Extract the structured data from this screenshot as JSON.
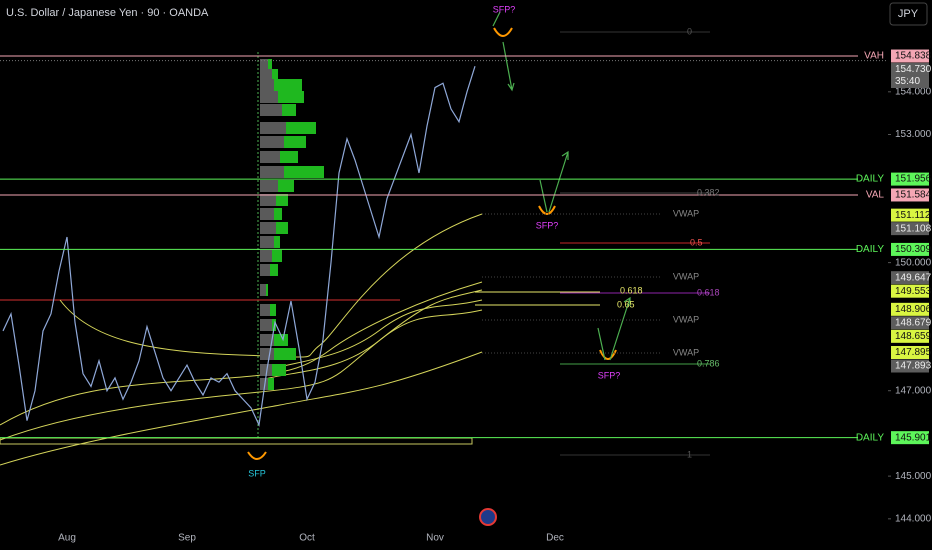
{
  "chart_data": {
    "type": "line",
    "title": "U.S. Dollar / Japanese Yen · 90 · OANDA",
    "currency": "JPY",
    "color": "#8fa8d8",
    "categories": [
      null,
      null,
      null,
      null,
      null,
      null,
      null,
      null,
      "Aug",
      null,
      null,
      null,
      null,
      null,
      null,
      null,
      null,
      null,
      null,
      null,
      null,
      null,
      null,
      "Sep",
      null,
      null,
      null,
      null,
      null,
      null,
      null,
      null,
      null,
      null,
      null,
      null,
      null,
      null,
      "Oct",
      null,
      null,
      null,
      null,
      null,
      null,
      null,
      null,
      null,
      null,
      null,
      null,
      null,
      null,
      null,
      "Nov",
      null,
      null,
      null,
      null,
      null,
      null,
      null,
      null,
      null,
      null,
      null,
      null,
      null,
      null,
      "Dec"
    ],
    "values": [
      148.4,
      148.8,
      147.6,
      146.3,
      147.0,
      148.4,
      148.8,
      149.8,
      150.6,
      148.6,
      147.4,
      147.1,
      147.7,
      147.0,
      147.3,
      146.8,
      147.2,
      147.7,
      148.5,
      147.9,
      147.3,
      147.0,
      147.3,
      147.6,
      147.2,
      146.9,
      147.3,
      147.2,
      147.4,
      147.0,
      146.8,
      146.6,
      146.2,
      147.5,
      148.6,
      148.2,
      149.1,
      148.0,
      146.8,
      147.2,
      148.2,
      150.0,
      152.1,
      152.9,
      152.4,
      151.8,
      151.2,
      150.6,
      151.5,
      152.0,
      152.5,
      153.0,
      152.1,
      153.2,
      154.1,
      154.2,
      153.6,
      153.3,
      154.0,
      154.6,
      null,
      null,
      null,
      null,
      null,
      null,
      null,
      null,
      null,
      null
    ],
    "ylim": [
      143.27,
      156.15
    ],
    "yticks": [
      {
        "value": 144,
        "label": "144.000"
      },
      {
        "value": 145,
        "label": "145.000"
      },
      {
        "value": 147,
        "label": "147.000"
      },
      {
        "value": 150,
        "label": "150.000"
      },
      {
        "value": 153,
        "label": "153.000"
      },
      {
        "value": 154,
        "label": "154.000"
      }
    ],
    "countdown": "35:40",
    "levels": [
      {
        "value": 154.838,
        "label": "154.838",
        "color": "#f4a6b4",
        "tag": "VAH"
      },
      {
        "value": 154.73,
        "label": "154.730",
        "color": "#5d5d5d"
      },
      {
        "value": 151.956,
        "label": "151.956",
        "color": "#5df55a",
        "tag": "DAILY"
      },
      {
        "value": 151.584,
        "label": "151.584",
        "color": "#f4a6b4",
        "tag": "VAL"
      },
      {
        "value": 151.112,
        "label": "151.112",
        "color": "#d9f542"
      },
      {
        "value": 151.108,
        "label": "151.108",
        "color": "#5d5d5d"
      },
      {
        "value": 150.309,
        "label": "150.309",
        "color": "#5df55a",
        "tag": "DAILY"
      },
      {
        "value": 149.647,
        "label": "149.647",
        "color": "#5d5d5d"
      },
      {
        "value": 149.553,
        "label": "149.553",
        "color": "#d9f542"
      },
      {
        "value": 148.906,
        "label": "148.906",
        "color": "#d9f542"
      },
      {
        "value": 148.679,
        "label": "148.679",
        "color": "#5d5d5d"
      },
      {
        "value": 148.659,
        "label": "148.659",
        "color": "#d9f542"
      },
      {
        "value": 147.895,
        "label": "147.895",
        "color": "#d9f542"
      },
      {
        "value": 147.893,
        "label": "147.893",
        "color": "#5d5d5d"
      },
      {
        "value": 145.901,
        "label": "145.901",
        "color": "#5df55a",
        "tag": "DAILY"
      }
    ],
    "annotations": [
      {
        "text": "SFP?",
        "color": "#e040fb"
      },
      {
        "text": "SFP?",
        "color": "#e040fb"
      },
      {
        "text": "SFP?",
        "color": "#e040fb"
      },
      {
        "text": "SFP",
        "color": "#26c6da"
      },
      {
        "text": "0",
        "color": "#555"
      },
      {
        "text": "0.382",
        "color": "#777"
      },
      {
        "text": "0.5",
        "color": "#ef5350"
      },
      {
        "text": "0.618",
        "color": "#ab47bc"
      },
      {
        "text": "0.618",
        "color": "#e8e86a"
      },
      {
        "text": "0.65",
        "color": "#e8e86a"
      },
      {
        "text": "0.786",
        "color": "#66bb6a"
      },
      {
        "text": "1",
        "color": "#555"
      },
      {
        "text": "VWAP",
        "color": "#888"
      },
      {
        "text": "VWAP",
        "color": "#888"
      },
      {
        "text": "VWAP",
        "color": "#888"
      },
      {
        "text": "VWAP",
        "color": "#888"
      }
    ]
  }
}
